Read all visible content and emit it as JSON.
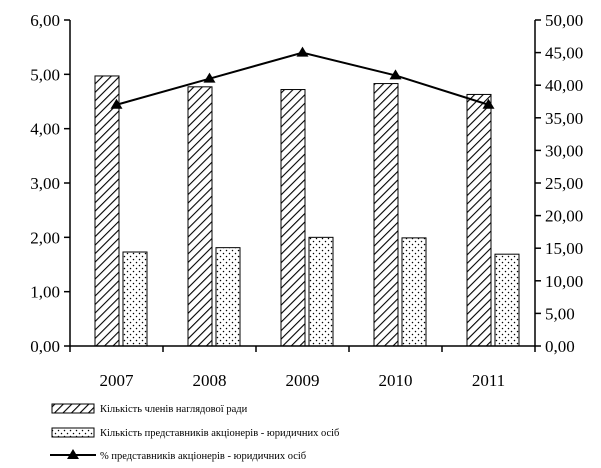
{
  "chart_data": {
    "type": "bar",
    "title": "",
    "categories": [
      "2007",
      "2008",
      "2009",
      "2010",
      "2011"
    ],
    "series": [
      {
        "name": "Кількість членів наглядової ради",
        "type": "bar",
        "axis": "left",
        "pattern": "diagonal-hatch",
        "values": [
          4.97,
          4.77,
          4.72,
          4.83,
          4.63
        ]
      },
      {
        "name": "Кількість представників акціонерів - юридичних осіб",
        "type": "bar",
        "axis": "left",
        "pattern": "dots",
        "values": [
          1.73,
          1.81,
          2.0,
          1.99,
          1.69
        ]
      },
      {
        "name": "% представників акціонерів - юридичних осіб",
        "type": "line",
        "axis": "right",
        "marker": "triangle",
        "values": [
          37.0,
          41.0,
          45.0,
          41.5,
          37.0
        ]
      }
    ],
    "left_axis": {
      "ylim": [
        0,
        6
      ],
      "ticks": [
        "0,00",
        "1,00",
        "2,00",
        "3,00",
        "4,00",
        "5,00",
        "6,00"
      ]
    },
    "right_axis": {
      "ylim": [
        0,
        50
      ],
      "ticks": [
        "0,00",
        "5,00",
        "10,00",
        "15,00",
        "20,00",
        "25,00",
        "30,00",
        "35,00",
        "40,00",
        "45,00",
        "50,00"
      ]
    },
    "legend_position": "bottom-left",
    "grid": false
  }
}
